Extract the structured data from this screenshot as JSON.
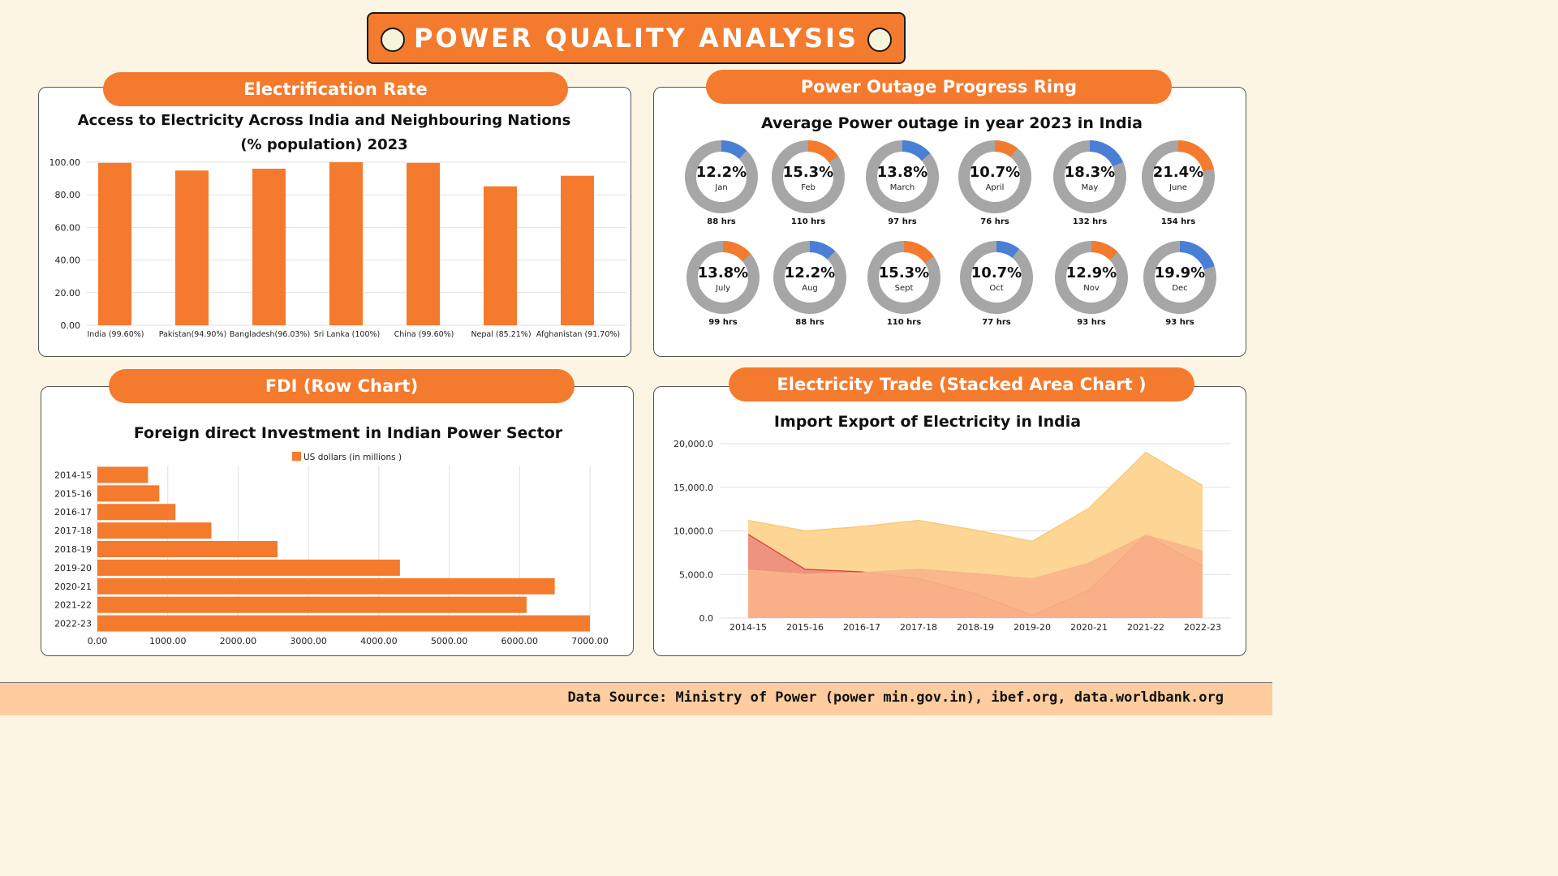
{
  "header": {
    "title": "POWER QUALITY ANALYSIS"
  },
  "panels": {
    "electrification": "Electrification Rate",
    "outage": "Power Outage Progress Ring",
    "fdi": "FDI (Row Chart)",
    "trade": "Electricity Trade (Stacked Area Chart )"
  },
  "footer": {
    "source": "Data Source: Ministry of Power (power min.gov.in), ibef.org, data.worldbank.org"
  },
  "colors": {
    "accent": "#f47a2d",
    "ring_track": "#a6a6a6",
    "ring_blue": "#4a7fd6",
    "ring_orange": "#f47a2d"
  },
  "chart_data": [
    {
      "type": "bar",
      "title_line1": "Access to Electricity Across India and Neighbouring Nations",
      "title_line2": "(% population) 2023",
      "categories": [
        "India (99.60%)",
        "Pakistan(94.90%)",
        "Bangladesh(96.03%)",
        "Sri Lanka (100%)",
        "China (99.60%)",
        "Nepal (85.21%)",
        "Afghanistan (91.70%)"
      ],
      "values": [
        99.6,
        94.9,
        96.03,
        100,
        99.6,
        85.21,
        91.7
      ],
      "yticks": [
        "0.00",
        "20.00",
        "40.00",
        "60.00",
        "80.00",
        "100.00"
      ],
      "ylim": [
        0,
        100
      ],
      "grid": true
    },
    {
      "type": "pie",
      "title": "Average Power outage in year 2023 in India",
      "items": [
        {
          "pct": "12.2%",
          "month": "Jan",
          "hrs": "88 hrs",
          "value": 12.2,
          "color": "blue"
        },
        {
          "pct": "15.3%",
          "month": "Feb",
          "hrs": "110 hrs",
          "value": 15.3,
          "color": "orange"
        },
        {
          "pct": "13.8%",
          "month": "March",
          "hrs": "97 hrs",
          "value": 13.8,
          "color": "blue"
        },
        {
          "pct": "10.7%",
          "month": "April",
          "hrs": "76 hrs",
          "value": 10.7,
          "color": "orange"
        },
        {
          "pct": "18.3%",
          "month": "May",
          "hrs": "132 hrs",
          "value": 18.3,
          "color": "blue"
        },
        {
          "pct": "21.4%",
          "month": "June",
          "hrs": "154 hrs",
          "value": 21.4,
          "color": "orange"
        },
        {
          "pct": "13.8%",
          "month": "July",
          "hrs": "99 hrs",
          "value": 13.8,
          "color": "orange"
        },
        {
          "pct": "12.2%",
          "month": "Aug",
          "hrs": "88 hrs",
          "value": 12.2,
          "color": "blue"
        },
        {
          "pct": "15.3%",
          "month": "Sept",
          "hrs": "110 hrs",
          "value": 15.3,
          "color": "orange"
        },
        {
          "pct": "10.7%",
          "month": "Oct",
          "hrs": "77 hrs",
          "value": 10.7,
          "color": "blue"
        },
        {
          "pct": "12.9%",
          "month": "Nov",
          "hrs": "93 hrs",
          "value": 12.9,
          "color": "orange"
        },
        {
          "pct": "19.9%",
          "month": "Dec",
          "hrs": "93 hrs",
          "value": 19.9,
          "color": "blue"
        }
      ]
    },
    {
      "type": "bar",
      "orientation": "horizontal",
      "title": "Foreign direct Investment in Indian Power Sector",
      "legend": "US dollars (in millions )",
      "categories": [
        "2014-15",
        "2015-16",
        "2016-17",
        "2017-18",
        "2018-19",
        "2019-20",
        "2020-21",
        "2021-22",
        "2022-23"
      ],
      "values": [
        720,
        880,
        1110,
        1620,
        2560,
        4300,
        6500,
        6100,
        7000
      ],
      "xticks": [
        "0.00",
        "1000.00",
        "2000.00",
        "3000.00",
        "4000.00",
        "5000.00",
        "6000.00",
        "7000.00"
      ],
      "xlim": [
        0,
        7000
      ],
      "grid": true
    },
    {
      "type": "area",
      "title": "Import Export of Electricity in India",
      "categories": [
        "2014-15",
        "2015-16",
        "2016-17",
        "2017-18",
        "2018-19",
        "2019-20",
        "2020-21",
        "2021-22",
        "2022-23"
      ],
      "series": [
        {
          "values": [
            5500,
            5000,
            5200,
            5600,
            5100,
            4500,
            6300,
            9500,
            7700
          ],
          "color": "#f9b48a"
        },
        {
          "values": [
            9600,
            5600,
            5300,
            4500,
            2800,
            300,
            3200,
            9500,
            6000
          ],
          "color": "#e8827a"
        },
        {
          "values": [
            11200,
            10000,
            10500,
            11200,
            10100,
            8800,
            12600,
            19000,
            15200
          ],
          "color": "#fdd28a"
        }
      ],
      "yticks": [
        "0.0",
        "5,000.0",
        "10,000.0",
        "15,000.0",
        "20,000.0"
      ],
      "ylim": [
        0,
        20000
      ],
      "grid": true
    }
  ]
}
